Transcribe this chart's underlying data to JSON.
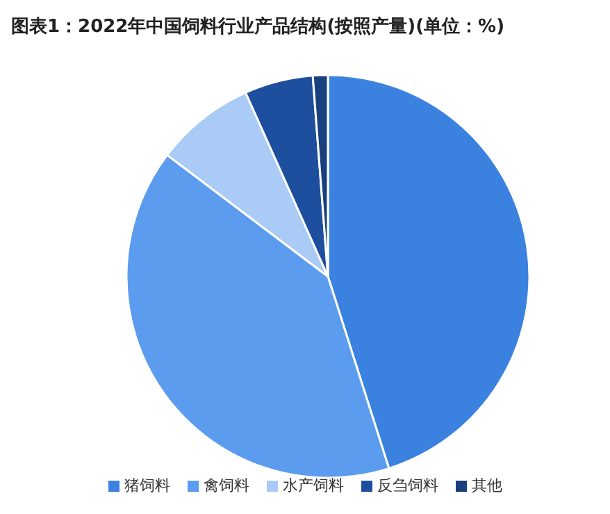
{
  "chart_data": {
    "type": "pie",
    "title": "图表1：2022年中国饲料行业产品结构(按照产量)(单位：%)",
    "categories": [
      "猪饲料",
      "禽饲料",
      "水产饲料",
      "反刍饲料",
      "其他"
    ],
    "values": [
      45.1,
      40.2,
      8.0,
      5.5,
      1.2
    ],
    "colors": [
      "#3b82e0",
      "#5b9cee",
      "#a9cbf5",
      "#1e4f9f",
      "#1a3f7e"
    ],
    "legend": "bottom"
  }
}
